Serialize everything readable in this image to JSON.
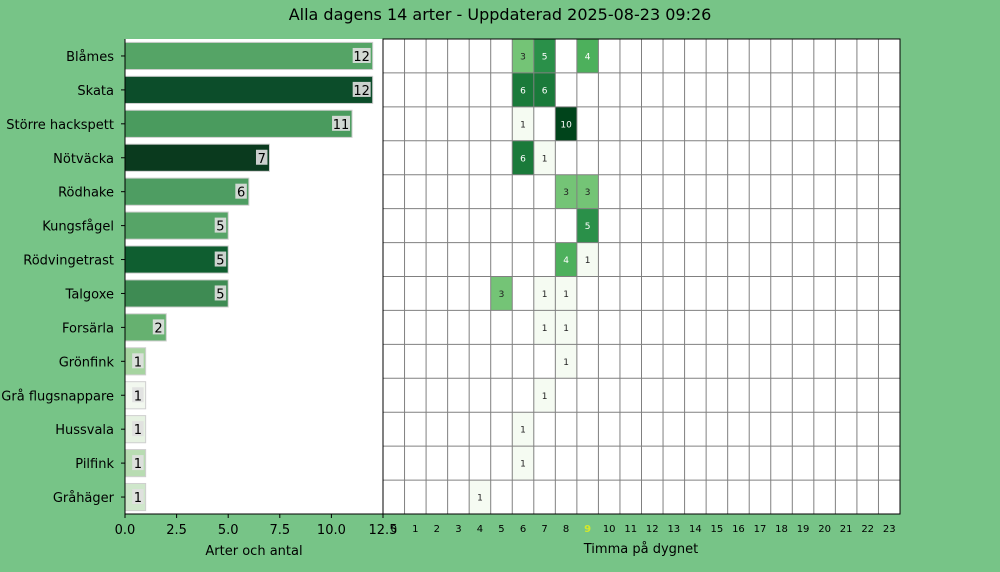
{
  "chart_data": {
    "title": "Alla dagens 14 arter - Uppdaterad 2025-08-23 09:26",
    "bar": {
      "type": "bar",
      "orientation": "horizontal",
      "xlabel": "Arter och antal",
      "xlim": [
        0,
        12.5
      ],
      "xticks": [
        "0.0",
        "2.5",
        "5.0",
        "7.5",
        "10.0",
        "12.5"
      ],
      "categories": [
        "Blåmes",
        "Skata",
        "Större hackspett",
        "Nötväcka",
        "Rödhake",
        "Kungsfågel",
        "Rödvingetrast",
        "Talgoxe",
        "Forsärla",
        "Grönfink",
        "Grå flugsnappare",
        "Hussvala",
        "Pilfink",
        "Gråhäger"
      ],
      "values": [
        12,
        12,
        11,
        7,
        6,
        5,
        5,
        5,
        2,
        1,
        1,
        1,
        1,
        1
      ],
      "colors": [
        "#55a466",
        "#0c4d2a",
        "#4a9b5e",
        "#0a3a1e",
        "#4e9d62",
        "#56a467",
        "#0f5e30",
        "#3e8b53",
        "#66b170",
        "#a6d4a0",
        "#f2f8ef",
        "#e6f2e2",
        "#b8dcb2",
        "#cfe7cb"
      ]
    },
    "heatmap": {
      "type": "heatmap",
      "xlabel": "Timma på dygnet",
      "hours": [
        "0",
        "1",
        "2",
        "3",
        "4",
        "5",
        "6",
        "7",
        "8",
        "9",
        "10",
        "11",
        "12",
        "13",
        "14",
        "15",
        "16",
        "17",
        "18",
        "19",
        "20",
        "21",
        "22",
        "23"
      ],
      "highlight_hour": "9",
      "highlight_color": "#d4e82a",
      "cells": [
        {
          "row": 0,
          "hour": 6,
          "value": 3,
          "color": "#74c476",
          "text_color": "#222"
        },
        {
          "row": 0,
          "hour": 7,
          "value": 5,
          "color": "#2a9049",
          "text_color": "#fff"
        },
        {
          "row": 0,
          "hour": 9,
          "value": 4,
          "color": "#4db05c",
          "text_color": "#fff"
        },
        {
          "row": 1,
          "hour": 6,
          "value": 6,
          "color": "#1a7a3a",
          "text_color": "#fff"
        },
        {
          "row": 1,
          "hour": 7,
          "value": 6,
          "color": "#1a7a3a",
          "text_color": "#fff"
        },
        {
          "row": 2,
          "hour": 6,
          "value": 1,
          "color": "#f5fbf2",
          "text_color": "#222"
        },
        {
          "row": 2,
          "hour": 8,
          "value": 10,
          "color": "#00441b",
          "text_color": "#fff"
        },
        {
          "row": 3,
          "hour": 6,
          "value": 6,
          "color": "#1a7a3a",
          "text_color": "#fff"
        },
        {
          "row": 3,
          "hour": 7,
          "value": 1,
          "color": "#f5fbf2",
          "text_color": "#222"
        },
        {
          "row": 4,
          "hour": 8,
          "value": 3,
          "color": "#74c476",
          "text_color": "#222"
        },
        {
          "row": 4,
          "hour": 9,
          "value": 3,
          "color": "#74c476",
          "text_color": "#222"
        },
        {
          "row": 5,
          "hour": 9,
          "value": 5,
          "color": "#2a9049",
          "text_color": "#fff"
        },
        {
          "row": 6,
          "hour": 8,
          "value": 4,
          "color": "#4db05c",
          "text_color": "#fff"
        },
        {
          "row": 6,
          "hour": 9,
          "value": 1,
          "color": "#f5fbf2",
          "text_color": "#222"
        },
        {
          "row": 7,
          "hour": 5,
          "value": 3,
          "color": "#74c476",
          "text_color": "#222"
        },
        {
          "row": 7,
          "hour": 7,
          "value": 1,
          "color": "#f5fbf2",
          "text_color": "#222"
        },
        {
          "row": 7,
          "hour": 8,
          "value": 1,
          "color": "#f5fbf2",
          "text_color": "#222"
        },
        {
          "row": 8,
          "hour": 7,
          "value": 1,
          "color": "#f5fbf2",
          "text_color": "#222"
        },
        {
          "row": 8,
          "hour": 8,
          "value": 1,
          "color": "#f5fbf2",
          "text_color": "#222"
        },
        {
          "row": 9,
          "hour": 8,
          "value": 1,
          "color": "#f5fbf2",
          "text_color": "#222"
        },
        {
          "row": 10,
          "hour": 7,
          "value": 1,
          "color": "#f5fbf2",
          "text_color": "#222"
        },
        {
          "row": 11,
          "hour": 6,
          "value": 1,
          "color": "#f5fbf2",
          "text_color": "#222"
        },
        {
          "row": 12,
          "hour": 6,
          "value": 1,
          "color": "#f5fbf2",
          "text_color": "#222"
        },
        {
          "row": 13,
          "hour": 4,
          "value": 1,
          "color": "#f5fbf2",
          "text_color": "#222"
        }
      ]
    }
  }
}
